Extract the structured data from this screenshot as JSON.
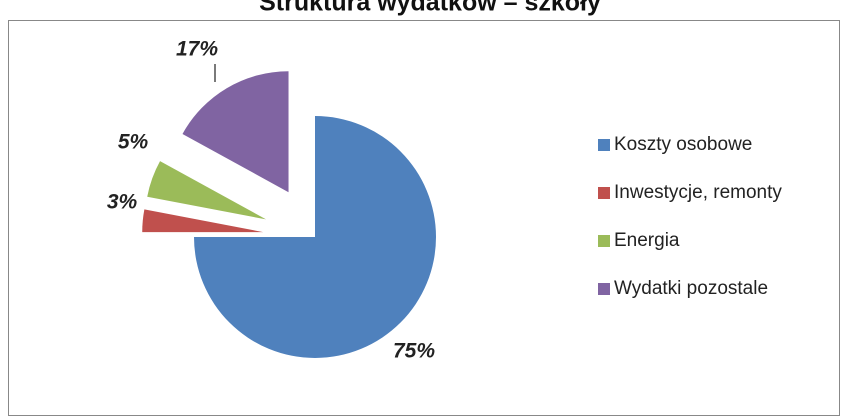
{
  "chart_data": {
    "type": "pie",
    "title": "Struktura wydatków – szkoły",
    "categories": [
      "Koszty osobowe",
      "Inwestycje, remonty",
      "Energia",
      "Wydatki pozostale"
    ],
    "values": [
      75,
      3,
      5,
      17
    ],
    "value_labels": [
      "75%",
      "3%",
      "5%",
      "17%"
    ],
    "colors": [
      "#4f81bd",
      "#c0504d",
      "#9bbb59",
      "#8064a2"
    ],
    "legend": "right"
  }
}
